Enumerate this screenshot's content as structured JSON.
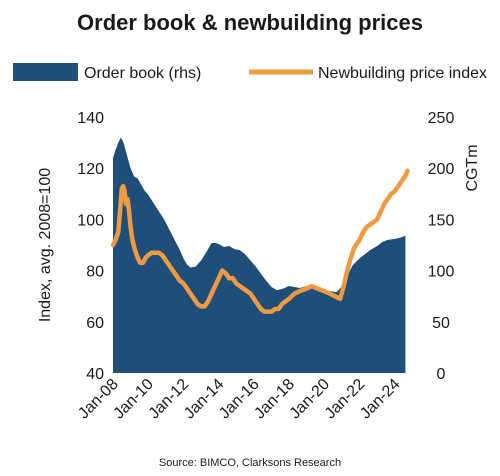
{
  "chart_data": {
    "type": "area+line",
    "title": "Order book & newbuilding prices",
    "source": "Source: BIMCO, Clarksons Research",
    "ylabel_left": "Index, avg. 2008=100",
    "ylabel_right": "CGTm",
    "ylim_left": [
      40,
      140
    ],
    "yticks_left": [
      "40",
      "60",
      "80",
      "100",
      "120",
      "140"
    ],
    "ylim_right": [
      0,
      250
    ],
    "yticks_right": [
      "0",
      "50",
      "100",
      "150",
      "200",
      "250"
    ],
    "xlim": [
      2008.0,
      2024.75
    ],
    "xticks": [
      {
        "label": "Jan-08",
        "x": 2008
      },
      {
        "label": "Jan-10",
        "x": 2010
      },
      {
        "label": "Jan-12",
        "x": 2012
      },
      {
        "label": "Jan-14",
        "x": 2014
      },
      {
        "label": "Jan-16",
        "x": 2016
      },
      {
        "label": "Jan-18",
        "x": 2018
      },
      {
        "label": "Jan-20",
        "x": 2020
      },
      {
        "label": "Jan-22",
        "x": 2022
      },
      {
        "label": "Jan-24",
        "x": 2024
      }
    ],
    "legend_position": "top",
    "grid": false,
    "series": [
      {
        "name": "Order book (rhs)",
        "kind": "area",
        "axis": "right",
        "color": "#1f4e79",
        "points": [
          [
            2008.0,
            210
          ],
          [
            2008.15,
            218
          ],
          [
            2008.3,
            225
          ],
          [
            2008.45,
            230
          ],
          [
            2008.6,
            225
          ],
          [
            2008.8,
            212
          ],
          [
            2009.0,
            200
          ],
          [
            2009.2,
            192
          ],
          [
            2009.4,
            190
          ],
          [
            2009.6,
            184
          ],
          [
            2009.8,
            178
          ],
          [
            2010.0,
            174
          ],
          [
            2010.3,
            166
          ],
          [
            2010.6,
            158
          ],
          [
            2010.9,
            150
          ],
          [
            2011.2,
            140
          ],
          [
            2011.5,
            130
          ],
          [
            2011.8,
            120
          ],
          [
            2012.0,
            112
          ],
          [
            2012.2,
            106
          ],
          [
            2012.4,
            103
          ],
          [
            2012.7,
            104
          ],
          [
            2013.0,
            110
          ],
          [
            2013.3,
            118
          ],
          [
            2013.6,
            127
          ],
          [
            2013.8,
            127
          ],
          [
            2014.0,
            126
          ],
          [
            2014.3,
            123
          ],
          [
            2014.6,
            124
          ],
          [
            2014.9,
            121
          ],
          [
            2015.2,
            120
          ],
          [
            2015.5,
            116
          ],
          [
            2015.8,
            110
          ],
          [
            2016.1,
            104
          ],
          [
            2016.4,
            97
          ],
          [
            2016.7,
            90
          ],
          [
            2017.0,
            84
          ],
          [
            2017.3,
            81
          ],
          [
            2017.6,
            82
          ],
          [
            2018.0,
            85
          ],
          [
            2018.3,
            84
          ],
          [
            2018.6,
            83
          ],
          [
            2019.0,
            85
          ],
          [
            2019.3,
            85
          ],
          [
            2019.6,
            84
          ],
          [
            2020.0,
            82
          ],
          [
            2020.3,
            80
          ],
          [
            2020.7,
            79
          ],
          [
            2021.0,
            85
          ],
          [
            2021.3,
            95
          ],
          [
            2021.6,
            105
          ],
          [
            2022.0,
            112
          ],
          [
            2022.3,
            116
          ],
          [
            2022.6,
            120
          ],
          [
            2023.0,
            124
          ],
          [
            2023.3,
            128
          ],
          [
            2023.6,
            130
          ],
          [
            2024.0,
            131
          ],
          [
            2024.3,
            132
          ],
          [
            2024.6,
            134
          ]
        ]
      },
      {
        "name": "Newbuilding price index",
        "kind": "line",
        "axis": "left",
        "color": "#f09a42",
        "points": [
          [
            2008.0,
            90
          ],
          [
            2008.15,
            92
          ],
          [
            2008.3,
            95
          ],
          [
            2008.42,
            105
          ],
          [
            2008.5,
            112
          ],
          [
            2008.58,
            113
          ],
          [
            2008.66,
            111
          ],
          [
            2008.74,
            106
          ],
          [
            2008.82,
            108
          ],
          [
            2008.9,
            104
          ],
          [
            2009.0,
            97
          ],
          [
            2009.1,
            92
          ],
          [
            2009.25,
            88
          ],
          [
            2009.4,
            85
          ],
          [
            2009.55,
            83
          ],
          [
            2009.7,
            83
          ],
          [
            2009.85,
            85
          ],
          [
            2010.0,
            86
          ],
          [
            2010.2,
            87
          ],
          [
            2010.4,
            87
          ],
          [
            2010.6,
            87
          ],
          [
            2010.8,
            86
          ],
          [
            2011.0,
            84
          ],
          [
            2011.2,
            82
          ],
          [
            2011.4,
            80
          ],
          [
            2011.6,
            78
          ],
          [
            2011.8,
            76
          ],
          [
            2012.0,
            75
          ],
          [
            2012.2,
            73
          ],
          [
            2012.4,
            71
          ],
          [
            2012.6,
            69
          ],
          [
            2012.8,
            67
          ],
          [
            2013.0,
            66
          ],
          [
            2013.2,
            66
          ],
          [
            2013.4,
            68
          ],
          [
            2013.6,
            71
          ],
          [
            2013.8,
            74
          ],
          [
            2014.0,
            77
          ],
          [
            2014.2,
            80
          ],
          [
            2014.4,
            79
          ],
          [
            2014.6,
            77
          ],
          [
            2014.8,
            77
          ],
          [
            2015.0,
            75
          ],
          [
            2015.2,
            74
          ],
          [
            2015.4,
            73
          ],
          [
            2015.6,
            72
          ],
          [
            2015.8,
            71
          ],
          [
            2016.0,
            69
          ],
          [
            2016.2,
            67
          ],
          [
            2016.4,
            65
          ],
          [
            2016.6,
            64
          ],
          [
            2016.8,
            64
          ],
          [
            2017.0,
            64
          ],
          [
            2017.2,
            65
          ],
          [
            2017.4,
            65
          ],
          [
            2017.6,
            67
          ],
          [
            2017.8,
            68
          ],
          [
            2018.0,
            69
          ],
          [
            2018.3,
            71
          ],
          [
            2018.6,
            72
          ],
          [
            2019.0,
            73
          ],
          [
            2019.3,
            74
          ],
          [
            2019.6,
            73
          ],
          [
            2020.0,
            72
          ],
          [
            2020.3,
            71
          ],
          [
            2020.6,
            70
          ],
          [
            2020.9,
            69
          ],
          [
            2021.1,
            74
          ],
          [
            2021.3,
            80
          ],
          [
            2021.5,
            85
          ],
          [
            2021.7,
            89
          ],
          [
            2022.0,
            92
          ],
          [
            2022.2,
            95
          ],
          [
            2022.4,
            97
          ],
          [
            2022.6,
            98
          ],
          [
            2022.8,
            99
          ],
          [
            2023.0,
            100
          ],
          [
            2023.2,
            103
          ],
          [
            2023.4,
            106
          ],
          [
            2023.6,
            108
          ],
          [
            2023.8,
            110
          ],
          [
            2024.0,
            111
          ],
          [
            2024.2,
            113
          ],
          [
            2024.4,
            115
          ],
          [
            2024.6,
            117
          ],
          [
            2024.72,
            119
          ]
        ]
      }
    ]
  }
}
